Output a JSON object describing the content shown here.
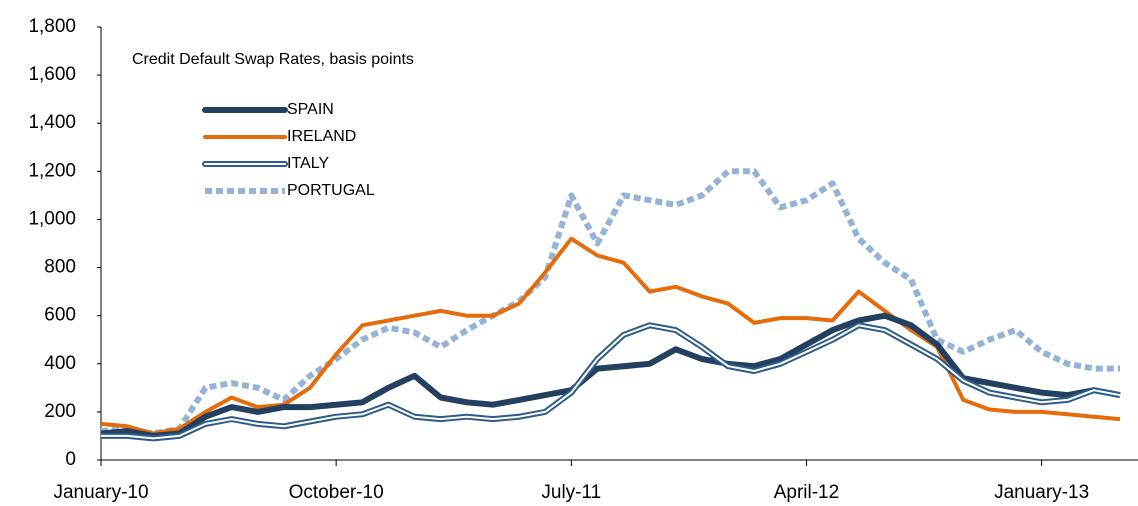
{
  "chart_data": {
    "type": "line",
    "title": "Credit Default Swap Rates, basis points",
    "categories": [
      "January-10",
      null,
      null,
      null,
      null,
      null,
      null,
      null,
      null,
      "October-10",
      null,
      null,
      null,
      null,
      null,
      null,
      null,
      null,
      "July-11",
      null,
      null,
      null,
      null,
      null,
      null,
      null,
      null,
      "April-12",
      null,
      null,
      null,
      null,
      null,
      null,
      null,
      null,
      "January-13",
      null,
      null,
      null
    ],
    "series": [
      {
        "name": "SPAIN",
        "color": "#243f60",
        "values": [
          110,
          120,
          100,
          110,
          180,
          220,
          200,
          220,
          220,
          230,
          240,
          300,
          350,
          260,
          240,
          230,
          250,
          270,
          290,
          380,
          390,
          400,
          460,
          420,
          400,
          390,
          420,
          480,
          540,
          580,
          600,
          560,
          480,
          340,
          320,
          300,
          280,
          270,
          290,
          270
        ]
      },
      {
        "name": "IRELAND",
        "color": "#e46c0a",
        "values": [
          150,
          140,
          110,
          130,
          200,
          260,
          220,
          230,
          300,
          440,
          560,
          580,
          600,
          620,
          600,
          600,
          650,
          780,
          920,
          850,
          820,
          700,
          720,
          680,
          650,
          570,
          590,
          590,
          580,
          700,
          620,
          540,
          470,
          250,
          210,
          200,
          200,
          190,
          180,
          170
        ]
      },
      {
        "name": "ITALY",
        "color": "#2e5c8a",
        "values": [
          100,
          100,
          90,
          100,
          150,
          170,
          150,
          140,
          160,
          180,
          190,
          230,
          180,
          170,
          180,
          170,
          180,
          200,
          280,
          420,
          520,
          560,
          540,
          470,
          390,
          370,
          400,
          450,
          500,
          560,
          540,
          480,
          420,
          330,
          280,
          260,
          240,
          250,
          290,
          270
        ]
      },
      {
        "name": "PORTUGAL",
        "color": "#95b3d7",
        "values": [
          120,
          130,
          110,
          130,
          300,
          320,
          300,
          250,
          350,
          420,
          500,
          550,
          530,
          470,
          540,
          600,
          660,
          760,
          1100,
          900,
          1100,
          1080,
          1060,
          1100,
          1200,
          1200,
          1050,
          1080,
          1150,
          920,
          820,
          750,
          500,
          450,
          500,
          540,
          450,
          400,
          380,
          380
        ]
      }
    ],
    "ylim": [
      0,
      1800
    ],
    "yticks": [
      0,
      200,
      400,
      600,
      800,
      {
        "value": 1000,
        "label": "1,000"
      },
      {
        "value": 1200,
        "label": "1,200"
      },
      {
        "value": 1400,
        "label": "1,400"
      },
      {
        "value": 1600,
        "label": "1,600"
      },
      {
        "value": 1800,
        "label": "1,800"
      }
    ],
    "grid": false
  }
}
